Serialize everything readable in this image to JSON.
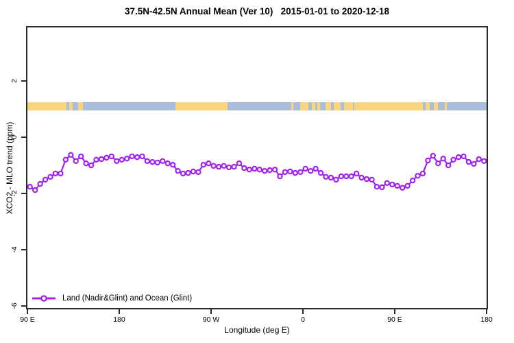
{
  "title": "37.5N-42.5N Annual Mean (Ver 10)   2015-01-01 to 2020-12-18",
  "chart_data": {
    "type": "line",
    "title": "37.5N-42.5N Annual Mean (Ver 10)   2015-01-01 to 2020-12-18",
    "xlabel": "Longitude (deg E)",
    "ylabel": "XCO2 - MLO trend (ppm)",
    "grid": false,
    "x_axis": {
      "tick_labels": [
        "90 E",
        "180",
        "90 W",
        "0",
        "90 E",
        "180"
      ],
      "tick_offsets_deg": [
        0,
        90,
        180,
        270,
        360,
        450
      ],
      "range_deg": [
        0,
        450
      ],
      "note": "longitude wraps eastward starting at 90E: 90E,180,90W,0,90E,180"
    },
    "y_axis": {
      "tick_labels": [
        "2",
        "0",
        "-2",
        "-4",
        "-6"
      ],
      "tick_values": [
        2,
        0,
        -2,
        -4,
        -6
      ],
      "range": [
        -6.15,
        3.95
      ]
    },
    "legend": {
      "label": "Land (Nadir&Glint) and Ocean (Glint)",
      "position": "bottom-left",
      "marker": "open-circle-on-line"
    },
    "series": [
      {
        "name": "Land (Nadir&Glint) and Ocean (Glint)",
        "color": "#A020F0",
        "marker": "open-circle",
        "x_start_deg_offset": 2.5,
        "x_step_deg": 5,
        "n_points": 90,
        "values": [
          -1.76,
          -1.88,
          -1.66,
          -1.51,
          -1.41,
          -1.29,
          -1.29,
          -0.8,
          -0.63,
          -0.85,
          -0.68,
          -0.93,
          -1.0,
          -0.8,
          -0.78,
          -0.73,
          -0.68,
          -0.85,
          -0.8,
          -0.76,
          -0.68,
          -0.71,
          -0.68,
          -0.85,
          -0.88,
          -0.9,
          -0.85,
          -0.93,
          -0.98,
          -1.2,
          -1.29,
          -1.27,
          -1.22,
          -1.24,
          -0.98,
          -0.93,
          -1.02,
          -1.05,
          -1.02,
          -1.07,
          -1.05,
          -0.93,
          -1.1,
          -1.15,
          -1.12,
          -1.15,
          -1.2,
          -1.17,
          -1.15,
          -1.39,
          -1.24,
          -1.22,
          -1.27,
          -1.24,
          -1.12,
          -1.2,
          -1.12,
          -1.27,
          -1.41,
          -1.44,
          -1.51,
          -1.39,
          -1.39,
          -1.39,
          -1.29,
          -1.44,
          -1.49,
          -1.51,
          -1.76,
          -1.78,
          -1.63,
          -1.68,
          -1.73,
          -1.8,
          -1.73,
          -1.54,
          -1.37,
          -1.29,
          -0.83,
          -0.66,
          -0.93,
          -0.76,
          -1.0,
          -0.8,
          -0.71,
          -0.68,
          -0.88,
          -0.95,
          -0.78,
          -0.85
        ]
      }
    ],
    "map_band": {
      "description": "land/ocean strip along 37.5N-42.5N latitude band",
      "y_range_ppm": [
        0.98,
        1.28
      ],
      "land_color": "#FAD57E",
      "ocean_color": "#A8BEDB",
      "segments_deg_offset": [
        [
          0,
          38.1,
          "land"
        ],
        [
          38.1,
          40.8,
          "ocean"
        ],
        [
          40.8,
          44.1,
          "land"
        ],
        [
          44.1,
          49.4,
          "ocean"
        ],
        [
          49.4,
          54.1,
          "land"
        ],
        [
          54.1,
          145.0,
          "ocean"
        ],
        [
          145.0,
          196.4,
          "land"
        ],
        [
          196.4,
          258.6,
          "ocean"
        ],
        [
          258.6,
          260.6,
          "land"
        ],
        [
          260.6,
          267.3,
          "ocean"
        ],
        [
          267.3,
          275.3,
          "land"
        ],
        [
          275.3,
          278.6,
          "ocean"
        ],
        [
          278.6,
          282.0,
          "land"
        ],
        [
          282.0,
          284.0,
          "ocean"
        ],
        [
          284.0,
          286.6,
          "land"
        ],
        [
          286.6,
          292.0,
          "ocean"
        ],
        [
          292.0,
          297.3,
          "land"
        ],
        [
          297.3,
          300.0,
          "ocean"
        ],
        [
          300.0,
          306.7,
          "land"
        ],
        [
          306.7,
          310.0,
          "ocean"
        ],
        [
          310.0,
          318.7,
          "land"
        ],
        [
          318.7,
          320.7,
          "ocean"
        ],
        [
          320.7,
          387.5,
          "land"
        ],
        [
          387.5,
          390.2,
          "ocean"
        ],
        [
          390.2,
          394.2,
          "land"
        ],
        [
          394.2,
          398.2,
          "ocean"
        ],
        [
          398.2,
          402.2,
          "land"
        ],
        [
          402.2,
          408.9,
          "ocean"
        ],
        [
          408.9,
          410.9,
          "land"
        ],
        [
          410.9,
          450,
          "ocean"
        ]
      ]
    },
    "frame_color": "#2b2b2b"
  }
}
